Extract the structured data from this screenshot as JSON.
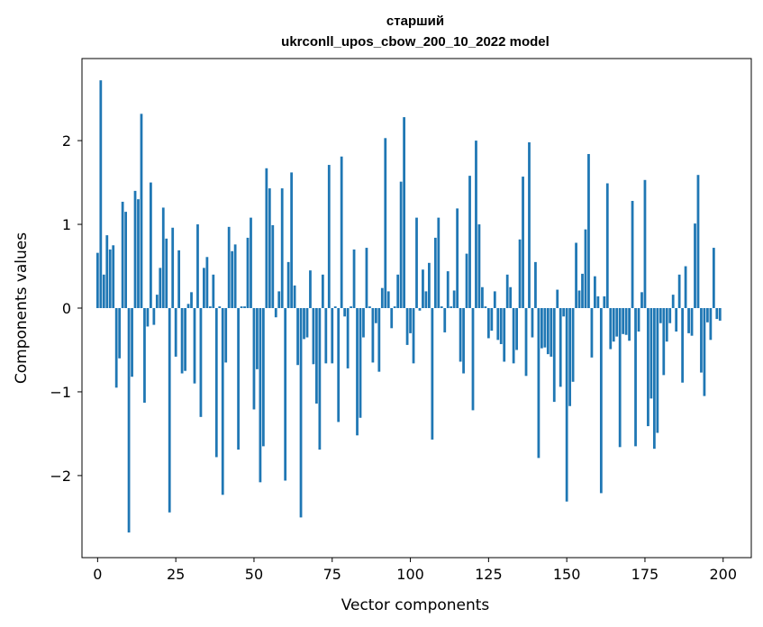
{
  "chart_data": {
    "type": "bar",
    "title": "старший\nukrconll_upos_cbow_200_10_2022 model",
    "xlabel": "Vector components",
    "ylabel": "Components values",
    "xlim": [
      -5,
      209
    ],
    "ylim": [
      -2.98,
      2.98
    ],
    "xticks": [
      0,
      25,
      50,
      75,
      100,
      125,
      150,
      175,
      200
    ],
    "yticks": [
      -2,
      -1,
      0,
      1,
      2
    ],
    "ytick_labels": [
      "−2",
      "−1",
      "0",
      "1",
      "2"
    ],
    "bar_color": "#1f77b4",
    "values": [
      0.66,
      2.72,
      0.4,
      0.87,
      0.7,
      0.75,
      -0.95,
      -0.6,
      1.27,
      1.15,
      -2.68,
      -0.82,
      1.4,
      1.3,
      2.32,
      -1.13,
      -0.22,
      1.5,
      -0.2,
      0.16,
      0.48,
      1.2,
      0.83,
      -2.44,
      0.96,
      -0.58,
      0.69,
      -0.78,
      -0.75,
      0.05,
      0.19,
      -0.9,
      1.0,
      -1.3,
      0.48,
      0.61,
      0.02,
      0.4,
      -1.78,
      0.02,
      -2.23,
      -0.65,
      0.97,
      0.68,
      0.76,
      -1.69,
      0.02,
      0.02,
      0.84,
      1.08,
      -1.21,
      -0.73,
      -2.08,
      -1.65,
      1.67,
      1.43,
      0.99,
      -0.11,
      0.2,
      1.43,
      -2.06,
      0.55,
      1.62,
      0.27,
      -0.68,
      -2.5,
      -0.37,
      -0.35,
      0.45,
      -0.67,
      -1.14,
      -1.69,
      0.4,
      -0.66,
      1.71,
      -0.66,
      0.02,
      -1.36,
      1.81,
      -0.1,
      -0.72,
      0.02,
      0.7,
      -1.52,
      -1.31,
      -0.35,
      0.72,
      0.02,
      -0.65,
      -0.18,
      -0.76,
      0.24,
      2.03,
      0.2,
      -0.24,
      0.02,
      0.4,
      1.51,
      2.28,
      -0.44,
      -0.3,
      -0.66,
      1.08,
      -0.03,
      0.46,
      0.2,
      0.54,
      -1.57,
      0.84,
      1.08,
      0.02,
      -0.29,
      0.44,
      0.02,
      0.21,
      1.19,
      -0.64,
      -0.78,
      0.65,
      1.58,
      -1.22,
      2.0,
      1.0,
      0.25,
      0.02,
      -0.36,
      -0.27,
      0.2,
      -0.38,
      -0.43,
      -0.64,
      0.4,
      0.25,
      -0.66,
      -0.5,
      0.82,
      1.57,
      -0.81,
      1.98,
      -0.35,
      0.55,
      -1.79,
      -0.48,
      -0.47,
      -0.55,
      -0.58,
      -1.12,
      0.22,
      -0.94,
      -0.1,
      -2.31,
      -1.17,
      -0.88,
      0.78,
      0.21,
      0.41,
      0.94,
      1.84,
      -0.59,
      0.38,
      0.14,
      -2.21,
      0.14,
      1.49,
      -0.49,
      -0.4,
      -0.34,
      -1.66,
      -0.31,
      -0.32,
      -0.39,
      1.28,
      -1.65,
      -0.28,
      0.19,
      1.53,
      -1.41,
      -1.08,
      -1.68,
      -1.49,
      -0.18,
      -0.8,
      -0.4,
      -0.18,
      0.16,
      -0.28,
      0.4,
      -0.89,
      0.5,
      -0.3,
      -0.33,
      1.01,
      1.59,
      -0.77,
      -1.05,
      -0.17,
      -0.38,
      0.72,
      -0.13,
      -0.15
    ]
  }
}
